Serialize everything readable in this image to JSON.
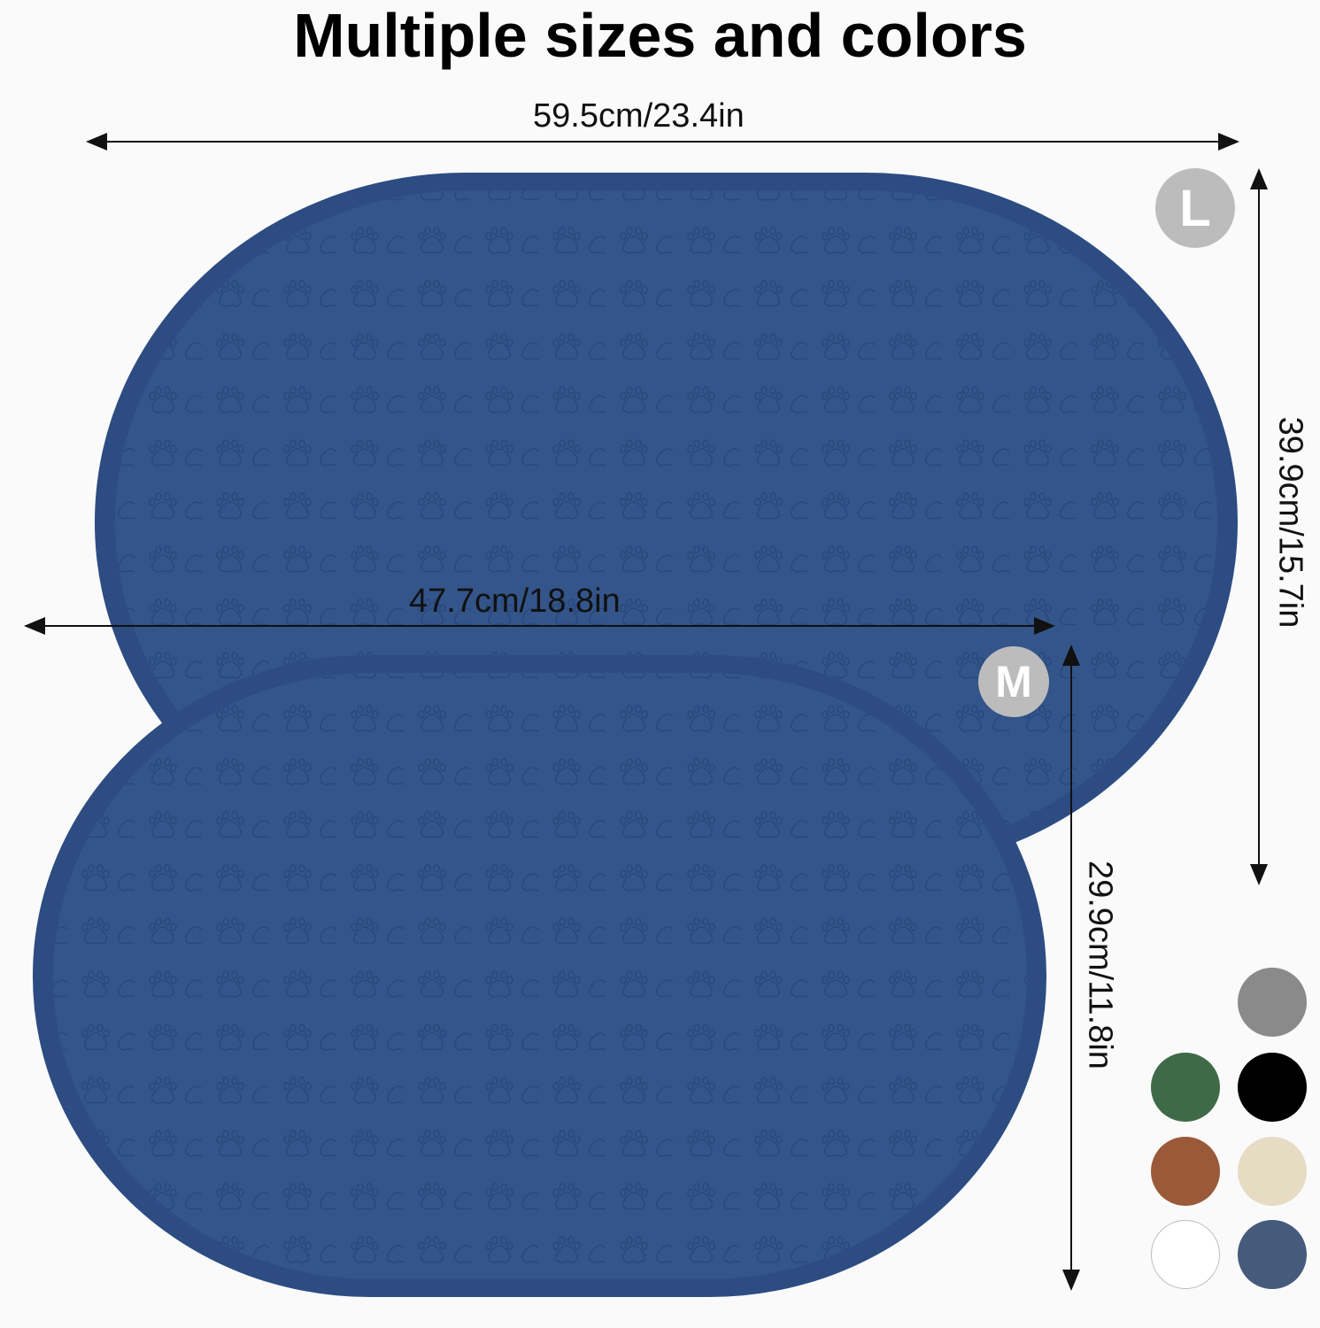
{
  "title": "Multiple sizes and colors",
  "large": {
    "badge": "L",
    "width_label": "59.5cm/23.4in",
    "height_label": "39.9cm/15.7in"
  },
  "medium": {
    "badge": "M",
    "width_label": "47.7cm/18.8in",
    "height_label": "29.9cm/11.8in"
  },
  "mat_color": "#33558a",
  "mat_pattern_icon": "paw-print-icon",
  "colors": [
    "#8a8a8a",
    "#3e6a48",
    "#000000",
    "#9a5a3a",
    "#e6dbc3",
    "#ffffff",
    "#465a7c"
  ]
}
